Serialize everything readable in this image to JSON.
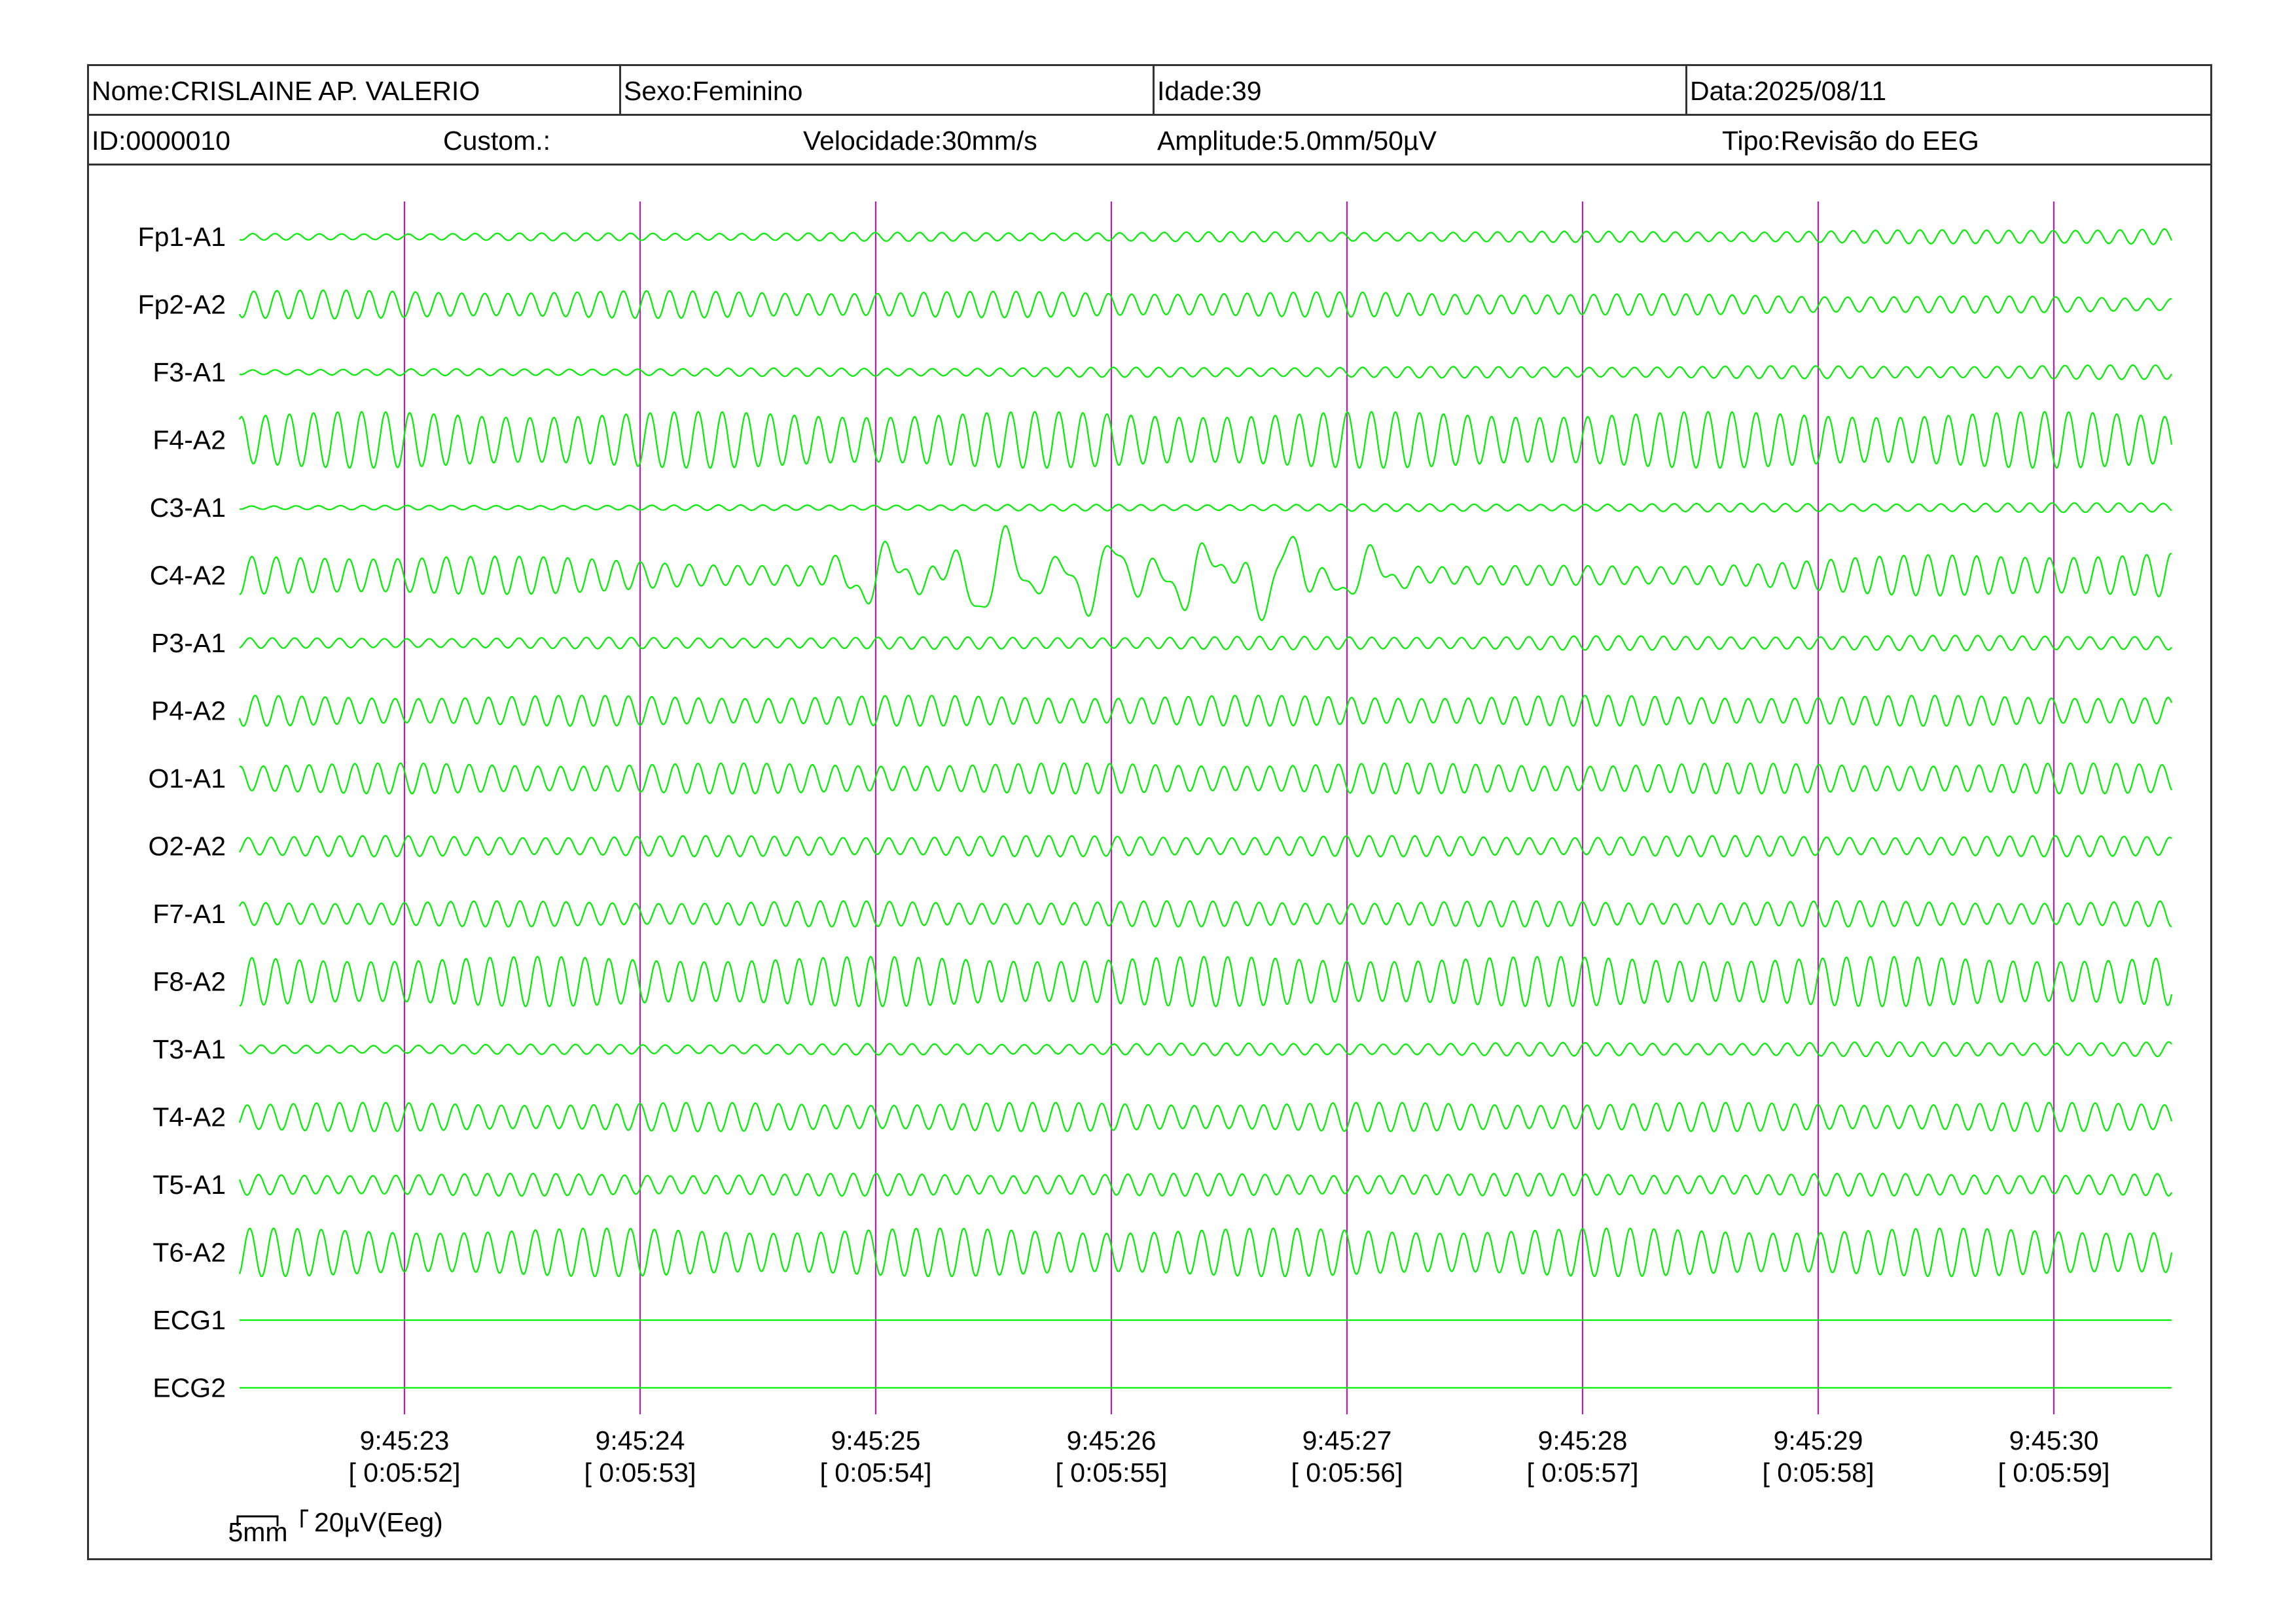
{
  "header": {
    "name": "Nome:CRISLAINE AP. VALERIO",
    "sex": "Sexo:Feminino",
    "age": "Idade:39",
    "date": "Data:2025/08/11",
    "id": "ID:0000010",
    "custom": "Custom.:",
    "speed": "Velocidade:30mm/s",
    "amplitude": "Amplitude:5.0mm/50µV",
    "type": "Tipo:Revisão do EEG"
  },
  "colors": {
    "trace": "#00ee00",
    "second_marker": "#dd00dd",
    "frame": "#333333"
  },
  "scale": {
    "time_label": "5mm",
    "amp_label": "20µV(Eeg)"
  },
  "chart_data": {
    "type": "line",
    "x_unit": "s",
    "channels": [
      {
        "name": "Fp1-A1",
        "amp": 0.45,
        "freq": 10.6,
        "env": [
          [
            0,
            0.45
          ],
          [
            6.5,
            0.8
          ],
          [
            8.2,
            1.2
          ]
        ]
      },
      {
        "name": "Fp2-A2",
        "amp": 0.9,
        "freq": 10.2,
        "env": [
          [
            0,
            1.0
          ],
          [
            5.0,
            0.85
          ],
          [
            8.2,
            0.5
          ]
        ]
      },
      {
        "name": "F3-A1",
        "amp": 0.45,
        "freq": 10.4,
        "env": [
          [
            0,
            0.4
          ],
          [
            8.2,
            1.0
          ]
        ]
      },
      {
        "name": "F4-A2",
        "amp": 1.75,
        "freq": 9.8,
        "env": [
          [
            0,
            1.0
          ],
          [
            8.2,
            1.0
          ]
        ]
      },
      {
        "name": "C3-A1",
        "amp": 0.3,
        "freq": 10.6,
        "env": [
          [
            0,
            0.4
          ],
          [
            8.2,
            1.0
          ]
        ]
      },
      {
        "name": "C4-A2",
        "amp": 1.2,
        "freq": 9.7,
        "env": [
          [
            0,
            1.0
          ],
          [
            0.9,
            1.1
          ],
          [
            2.2,
            0.6
          ],
          [
            6.0,
            0.5
          ],
          [
            7.2,
            1.1
          ],
          [
            8.2,
            1.2
          ]
        ]
      },
      {
        "name": "P3-A1",
        "amp": 0.45,
        "freq": 10.5,
        "env": [
          [
            0,
            0.7
          ],
          [
            8.2,
            1.1
          ]
        ]
      },
      {
        "name": "P4-A2",
        "amp": 0.95,
        "freq": 10.1,
        "env": [
          [
            0,
            1.0
          ],
          [
            8.2,
            1.0
          ]
        ]
      },
      {
        "name": "O1-A1",
        "amp": 0.95,
        "freq": 10.3,
        "env": [
          [
            0,
            1.0
          ],
          [
            8.2,
            1.0
          ]
        ]
      },
      {
        "name": "O2-A2",
        "amp": 0.65,
        "freq": 10.3,
        "env": [
          [
            0,
            1.0
          ],
          [
            8.2,
            1.0
          ]
        ]
      },
      {
        "name": "F7-A1",
        "amp": 0.8,
        "freq": 10.2,
        "env": [
          [
            0,
            1.0
          ],
          [
            8.2,
            1.0
          ]
        ]
      },
      {
        "name": "F8-A2",
        "amp": 1.55,
        "freq": 9.9,
        "env": [
          [
            0,
            1.0
          ],
          [
            8.2,
            1.0
          ]
        ]
      },
      {
        "name": "T3-A1",
        "amp": 0.4,
        "freq": 10.5,
        "env": [
          [
            0,
            0.7
          ],
          [
            8.2,
            1.2
          ]
        ]
      },
      {
        "name": "T4-A2",
        "amp": 0.9,
        "freq": 10.2,
        "env": [
          [
            0,
            1.0
          ],
          [
            8.2,
            1.0
          ]
        ]
      },
      {
        "name": "T5-A1",
        "amp": 0.7,
        "freq": 10.3,
        "env": [
          [
            0,
            1.0
          ],
          [
            8.2,
            1.0
          ]
        ]
      },
      {
        "name": "T6-A2",
        "amp": 1.5,
        "freq": 9.9,
        "env": [
          [
            0,
            1.0
          ],
          [
            8.2,
            1.0
          ]
        ]
      },
      {
        "name": "ECG1",
        "amp": 0,
        "freq": 0,
        "env": [
          [
            0,
            0
          ],
          [
            8.2,
            0
          ]
        ]
      },
      {
        "name": "ECG2",
        "amp": 0,
        "freq": 0,
        "env": [
          [
            0,
            0
          ],
          [
            8.2,
            0
          ]
        ]
      }
    ],
    "spike_burst": {
      "channel": "C4-A2",
      "events": [
        {
          "t": 2.7,
          "a": 2.0
        },
        {
          "t": 3.2,
          "a": 3.2
        },
        {
          "t": 3.65,
          "a": 2.6
        },
        {
          "t": 4.05,
          "a": 2.3
        },
        {
          "t": 4.4,
          "a": 3.0
        },
        {
          "t": 4.75,
          "a": 1.8
        }
      ]
    },
    "x_range": [
      0,
      8.2
    ],
    "marker_seconds": [
      0.7,
      1.7,
      2.7,
      3.7,
      4.7,
      5.7,
      6.7,
      7.7
    ],
    "time_labels": [
      {
        "clock": "9:45:23",
        "elapsed": "[ 0:05:52]"
      },
      {
        "clock": "9:45:24",
        "elapsed": "[ 0:05:53]"
      },
      {
        "clock": "9:45:25",
        "elapsed": "[ 0:05:54]"
      },
      {
        "clock": "9:45:26",
        "elapsed": "[ 0:05:55]"
      },
      {
        "clock": "9:45:27",
        "elapsed": "[ 0:05:56]"
      },
      {
        "clock": "9:45:28",
        "elapsed": "[ 0:05:57]"
      },
      {
        "clock": "9:45:29",
        "elapsed": "[ 0:05:58]"
      },
      {
        "clock": "9:45:30",
        "elapsed": "[ 0:05:59]"
      }
    ]
  }
}
